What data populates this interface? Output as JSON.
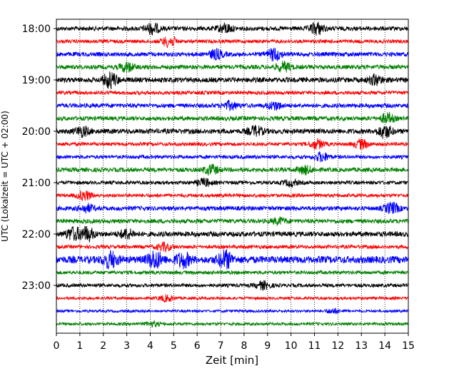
{
  "chart_data": {
    "type": "line",
    "title": "",
    "xlabel": "Zeit  [min]",
    "ylabel": "UTC (Lokalzeit = UTC + 02:00)",
    "xlim": [
      0,
      15
    ],
    "x_ticks": [
      "0",
      "1",
      "2",
      "3",
      "4",
      "5",
      "6",
      "7",
      "8",
      "9",
      "10",
      "11",
      "12",
      "13",
      "14",
      "15"
    ],
    "y_tick_labels": [
      "18:00",
      "19:00",
      "20:00",
      "21:00",
      "22:00",
      "23:00"
    ],
    "grid": "vertical dotted",
    "legend": "none",
    "series_colors": [
      "#000000",
      "#ff0000",
      "#0000ff",
      "#008000"
    ],
    "traces": [
      {
        "time": "18:00",
        "color": "#000000",
        "amplitude": 3,
        "events": [
          {
            "x": 4.1,
            "amp": 7
          },
          {
            "x": 7.2,
            "amp": 6
          },
          {
            "x": 11.1,
            "amp": 8
          }
        ]
      },
      {
        "time": "18:15",
        "color": "#ff0000",
        "amplitude": 2.5,
        "events": [
          {
            "x": 4.8,
            "amp": 7
          }
        ]
      },
      {
        "time": "18:30",
        "color": "#0000ff",
        "amplitude": 3,
        "events": [
          {
            "x": 6.8,
            "amp": 6
          },
          {
            "x": 9.3,
            "amp": 8
          }
        ]
      },
      {
        "time": "18:45",
        "color": "#008000",
        "amplitude": 3,
        "events": [
          {
            "x": 3.0,
            "amp": 6
          },
          {
            "x": 9.7,
            "amp": 6
          }
        ]
      },
      {
        "time": "19:00",
        "color": "#000000",
        "amplitude": 3.5,
        "events": [
          {
            "x": 2.3,
            "amp": 10
          },
          {
            "x": 13.6,
            "amp": 6
          }
        ]
      },
      {
        "time": "19:15",
        "color": "#ff0000",
        "amplitude": 2.5,
        "events": []
      },
      {
        "time": "19:30",
        "color": "#0000ff",
        "amplitude": 3,
        "events": [
          {
            "x": 7.4,
            "amp": 5
          },
          {
            "x": 9.3,
            "amp": 5
          }
        ]
      },
      {
        "time": "19:45",
        "color": "#008000",
        "amplitude": 3,
        "events": [
          {
            "x": 14.1,
            "amp": 6
          }
        ]
      },
      {
        "time": "20:00",
        "color": "#000000",
        "amplitude": 3.5,
        "events": [
          {
            "x": 1.1,
            "amp": 6
          },
          {
            "x": 8.5,
            "amp": 6
          },
          {
            "x": 14.0,
            "amp": 8
          }
        ]
      },
      {
        "time": "20:15",
        "color": "#ff0000",
        "amplitude": 2.5,
        "events": [
          {
            "x": 11.1,
            "amp": 6
          },
          {
            "x": 13.0,
            "amp": 6
          }
        ]
      },
      {
        "time": "20:30",
        "color": "#0000ff",
        "amplitude": 2.5,
        "events": [
          {
            "x": 11.3,
            "amp": 6
          }
        ]
      },
      {
        "time": "20:45",
        "color": "#008000",
        "amplitude": 3,
        "events": [
          {
            "x": 6.6,
            "amp": 6
          },
          {
            "x": 10.6,
            "amp": 5
          }
        ]
      },
      {
        "time": "21:00",
        "color": "#000000",
        "amplitude": 2.5,
        "events": [
          {
            "x": 6.3,
            "amp": 5
          },
          {
            "x": 10.0,
            "amp": 4
          }
        ]
      },
      {
        "time": "21:15",
        "color": "#ff0000",
        "amplitude": 2.5,
        "events": [
          {
            "x": 1.2,
            "amp": 6
          }
        ]
      },
      {
        "time": "21:30",
        "color": "#0000ff",
        "amplitude": 3,
        "events": [
          {
            "x": 1.3,
            "amp": 5
          },
          {
            "x": 14.3,
            "amp": 7
          }
        ]
      },
      {
        "time": "21:45",
        "color": "#008000",
        "amplitude": 3,
        "events": [
          {
            "x": 9.5,
            "amp": 4
          }
        ]
      },
      {
        "time": "22:00",
        "color": "#000000",
        "amplitude": 3.5,
        "events": [
          {
            "x": 0.7,
            "amp": 8
          },
          {
            "x": 1.3,
            "amp": 9
          },
          {
            "x": 3.0,
            "amp": 6
          }
        ]
      },
      {
        "time": "22:15",
        "color": "#ff0000",
        "amplitude": 2.5,
        "events": [
          {
            "x": 4.6,
            "amp": 5
          }
        ]
      },
      {
        "time": "22:30",
        "color": "#0000ff",
        "amplitude": 5,
        "events": [
          {
            "x": 2.3,
            "amp": 10
          },
          {
            "x": 4.2,
            "amp": 11
          },
          {
            "x": 5.4,
            "amp": 9
          },
          {
            "x": 7.2,
            "amp": 11
          }
        ]
      },
      {
        "time": "22:45",
        "color": "#008000",
        "amplitude": 2.5,
        "events": []
      },
      {
        "time": "23:00",
        "color": "#000000",
        "amplitude": 2.5,
        "events": [
          {
            "x": 8.8,
            "amp": 5
          }
        ]
      },
      {
        "time": "23:15",
        "color": "#ff0000",
        "amplitude": 2,
        "events": [
          {
            "x": 4.7,
            "amp": 4
          }
        ]
      },
      {
        "time": "23:30",
        "color": "#0000ff",
        "amplitude": 1.8,
        "events": [
          {
            "x": 11.8,
            "amp": 3
          }
        ]
      },
      {
        "time": "23:45",
        "color": "#008000",
        "amplitude": 2,
        "events": [
          {
            "x": 4.1,
            "amp": 3
          }
        ]
      }
    ]
  }
}
